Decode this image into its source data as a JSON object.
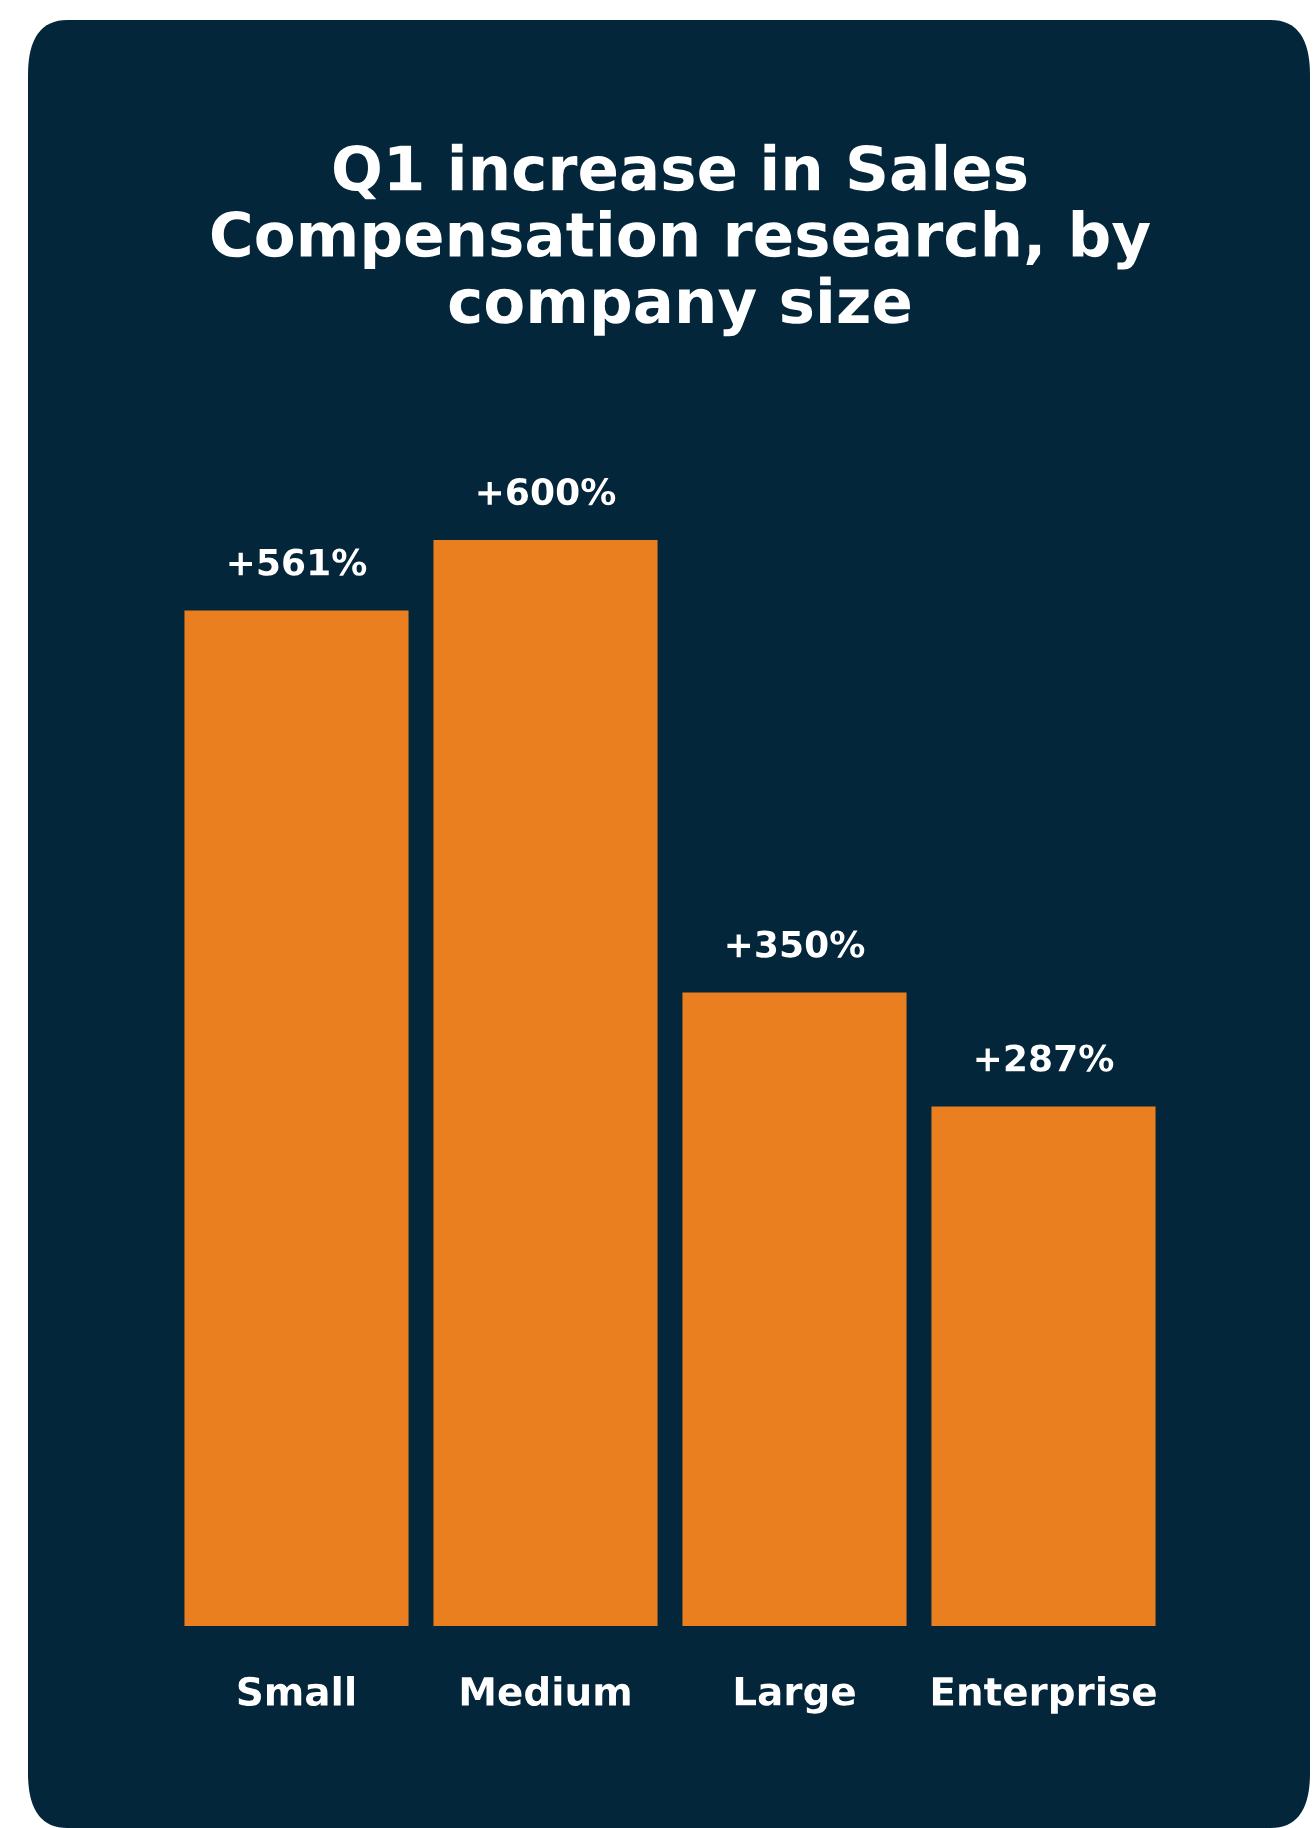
{
  "chart_data": {
    "type": "bar",
    "title": "Q1 increase in Sales\nCompensation research, by\ncompany size",
    "categories": [
      "Small",
      "Medium",
      "Large",
      "Enterprise"
    ],
    "values": [
      561,
      600,
      350,
      287
    ],
    "value_labels": [
      "+561%",
      "+600%",
      "+350%",
      "+287%"
    ],
    "color": "#ea7f1f",
    "grid": false,
    "legend": false
  }
}
